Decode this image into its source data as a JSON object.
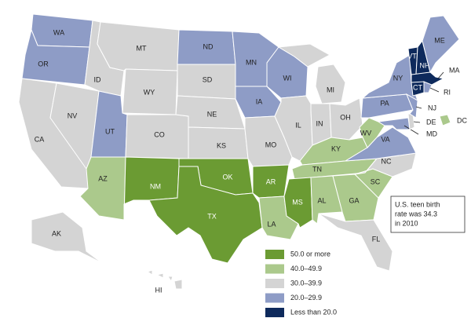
{
  "legend": [
    {
      "label": "50.0 or more",
      "color": "#6b9b33"
    },
    {
      "label": "40.0–49.9",
      "color": "#abc98c"
    },
    {
      "label": "30.0–39.9",
      "color": "#d4d4d4"
    },
    {
      "label": "20.0–29.9",
      "color": "#8e9cc6"
    },
    {
      "label": "Less than 20.0",
      "color": "#0e2a5c"
    }
  ],
  "states": [
    {
      "label": "WA",
      "category": 3
    },
    {
      "label": "OR",
      "category": 3
    },
    {
      "label": "CA",
      "category": 2
    },
    {
      "label": "NV",
      "category": 2
    },
    {
      "label": "ID",
      "category": 2
    },
    {
      "label": "MT",
      "category": 2
    },
    {
      "label": "WY",
      "category": 2
    },
    {
      "label": "UT",
      "category": 3
    },
    {
      "label": "CO",
      "category": 2
    },
    {
      "label": "AZ",
      "category": 1
    },
    {
      "label": "NM",
      "category": 0
    },
    {
      "label": "ND",
      "category": 3
    },
    {
      "label": "SD",
      "category": 2
    },
    {
      "label": "NE",
      "category": 2
    },
    {
      "label": "KS",
      "category": 2
    },
    {
      "label": "OK",
      "category": 0
    },
    {
      "label": "TX",
      "category": 0
    },
    {
      "label": "MN",
      "category": 3
    },
    {
      "label": "IA",
      "category": 3
    },
    {
      "label": "MO",
      "category": 2
    },
    {
      "label": "AR",
      "category": 0
    },
    {
      "label": "LA",
      "category": 1
    },
    {
      "label": "WI",
      "category": 3
    },
    {
      "label": "IL",
      "category": 2
    },
    {
      "label": "MI",
      "category": 2
    },
    {
      "label": "IN",
      "category": 2
    },
    {
      "label": "OH",
      "category": 2
    },
    {
      "label": "KY",
      "category": 1
    },
    {
      "label": "TN",
      "category": 1
    },
    {
      "label": "MS",
      "category": 0
    },
    {
      "label": "AL",
      "category": 1
    },
    {
      "label": "GA",
      "category": 1
    },
    {
      "label": "FL",
      "category": 2
    },
    {
      "label": "SC",
      "category": 1
    },
    {
      "label": "NC",
      "category": 2
    },
    {
      "label": "VA",
      "category": 3
    },
    {
      "label": "WV",
      "category": 1
    },
    {
      "label": "PA",
      "category": 3
    },
    {
      "label": "NY",
      "category": 3
    },
    {
      "label": "MD",
      "category": 3
    },
    {
      "label": "DE",
      "category": 2
    },
    {
      "label": "NJ",
      "category": 3
    },
    {
      "label": "VT",
      "category": 4
    },
    {
      "label": "NH",
      "category": 4
    },
    {
      "label": "ME",
      "category": 3
    },
    {
      "label": "MA",
      "category": 4
    },
    {
      "label": "CT",
      "category": 4
    },
    {
      "label": "RI",
      "category": 3
    },
    {
      "label": "DC",
      "category": 1
    },
    {
      "label": "AK",
      "category": 2
    },
    {
      "label": "HI",
      "category": 2
    }
  ],
  "note": [
    "U.S. teen birth",
    "rate was 34.3",
    "in 2010"
  ]
}
